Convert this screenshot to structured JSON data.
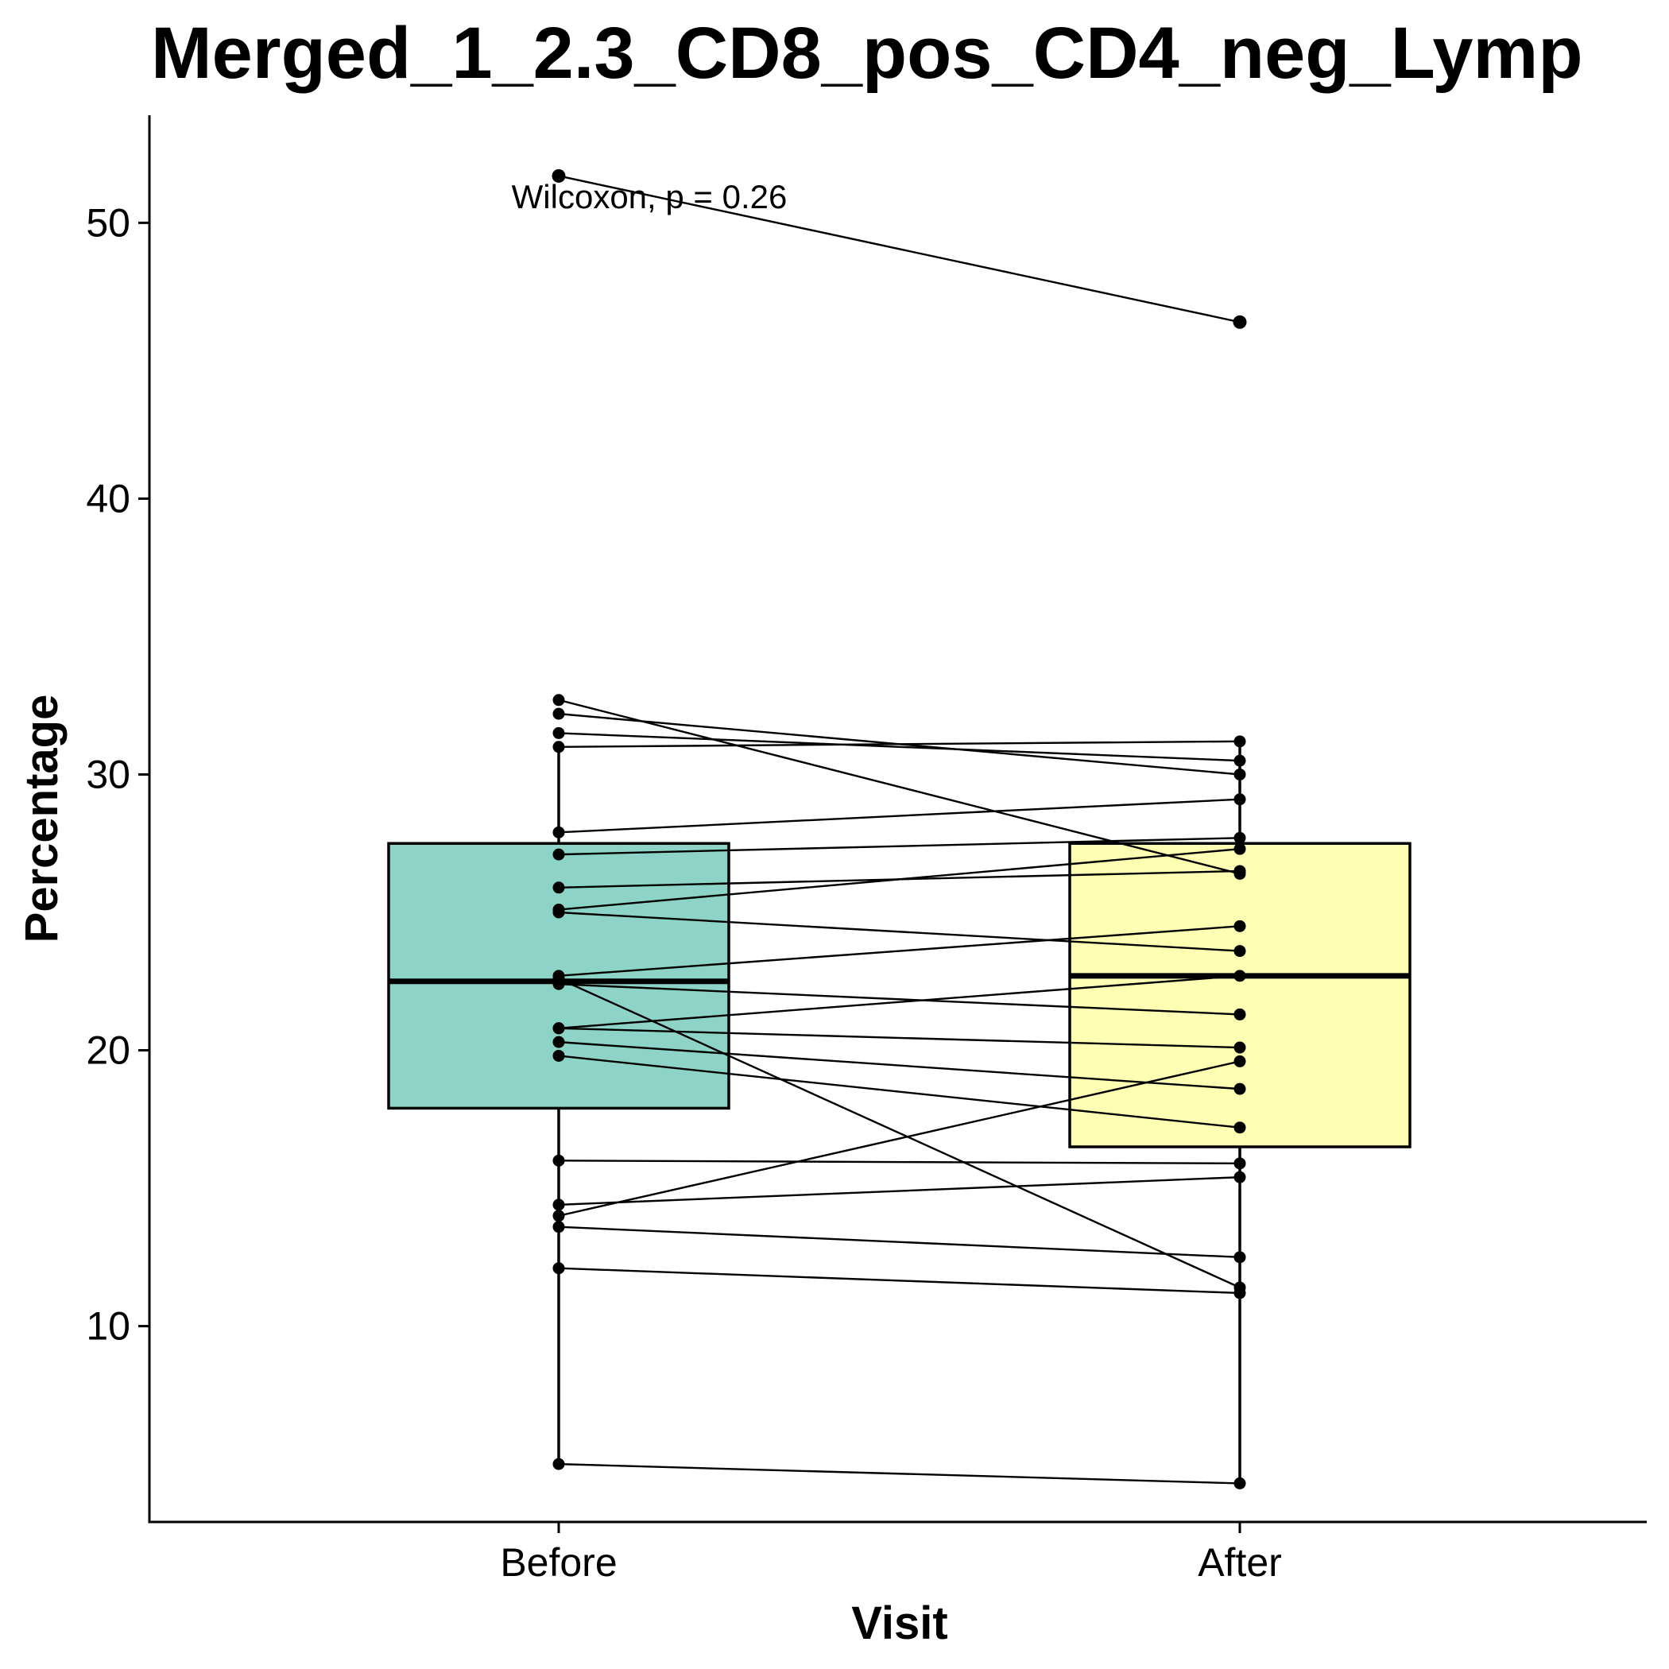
{
  "chart_data": {
    "type": "box",
    "title": "Merged_1_2.3_CD8_pos_CD4_neg_Lymp",
    "xlabel": "Visit",
    "ylabel": "Percentage",
    "categories": [
      "Before",
      "After"
    ],
    "yticks": [
      10,
      20,
      30,
      40,
      50
    ],
    "ylim": [
      2.9,
      53.9
    ],
    "annotation": "Wilcoxon, p = 0.26",
    "grid": false,
    "legend": "none",
    "box_colors": [
      "#8dd3c7",
      "#ffffb3"
    ],
    "boxes": [
      {
        "category": "Before",
        "q1": 17.9,
        "median": 22.5,
        "q3": 27.5,
        "whisker_low": 5.0,
        "whisker_high": 31.0
      },
      {
        "category": "After",
        "q1": 16.5,
        "median": 22.7,
        "q3": 27.5,
        "whisker_low": 4.3,
        "whisker_high": 31.2
      }
    ],
    "pairs": [
      [
        51.7,
        46.4
      ],
      [
        32.7,
        26.4
      ],
      [
        32.2,
        30.0
      ],
      [
        31.5,
        30.5
      ],
      [
        31.0,
        31.2
      ],
      [
        27.9,
        29.1
      ],
      [
        27.1,
        27.7
      ],
      [
        25.9,
        26.5
      ],
      [
        25.1,
        27.3
      ],
      [
        25.0,
        23.6
      ],
      [
        22.7,
        24.5
      ],
      [
        22.6,
        11.4
      ],
      [
        22.4,
        21.3
      ],
      [
        20.8,
        22.7
      ],
      [
        20.8,
        20.1
      ],
      [
        20.3,
        18.6
      ],
      [
        19.8,
        17.2
      ],
      [
        16.0,
        15.9
      ],
      [
        14.4,
        15.4
      ],
      [
        14.0,
        19.6
      ],
      [
        13.6,
        12.5
      ],
      [
        12.1,
        11.2
      ],
      [
        5.0,
        4.3
      ]
    ]
  }
}
